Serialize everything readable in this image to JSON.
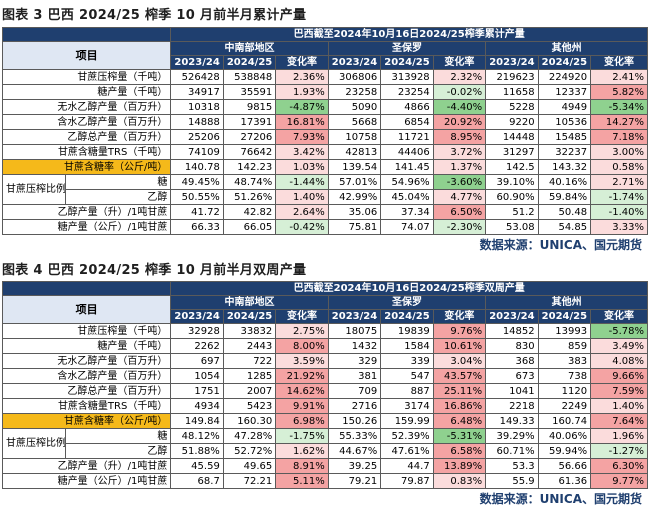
{
  "source_text": "数据来源：UNICA、国元期货",
  "table3": {
    "title": "图表 3  巴西 2024/25 榨季 10 月前半月累计产量",
    "banner": "巴西截至2024年10月16日2024/25榨季累计产量",
    "item_header": "项目",
    "regions": [
      "中南部地区",
      "圣保罗",
      "其他州"
    ],
    "sub_headers": [
      "2023/24",
      "2024/25",
      "变化率"
    ],
    "rows": [
      {
        "label": "甘蔗压榨量（千吨）",
        "cells": [
          [
            "526428",
            "538848",
            "2.36%"
          ],
          [
            "306806",
            "313928",
            "2.32%"
          ],
          [
            "219623",
            "224920",
            "2.41%"
          ]
        ]
      },
      {
        "label": "糖产量（千吨）",
        "cells": [
          [
            "34917",
            "35591",
            "1.93%"
          ],
          [
            "23258",
            "23254",
            "-0.02%"
          ],
          [
            "11658",
            "12337",
            "5.82%"
          ]
        ]
      },
      {
        "label": "无水乙醇产量（百万升）",
        "cells": [
          [
            "10318",
            "9815",
            "-4.87%"
          ],
          [
            "5090",
            "4866",
            "-4.40%"
          ],
          [
            "5228",
            "4949",
            "-5.34%"
          ]
        ]
      },
      {
        "label": "含水乙醇产量（百万升）",
        "cells": [
          [
            "14888",
            "17391",
            "16.81%"
          ],
          [
            "5668",
            "6854",
            "20.92%"
          ],
          [
            "9220",
            "10536",
            "14.27%"
          ]
        ]
      },
      {
        "label": "乙醇总产量（百万升）",
        "cells": [
          [
            "25206",
            "27206",
            "7.93%"
          ],
          [
            "10758",
            "11721",
            "8.95%"
          ],
          [
            "14448",
            "15485",
            "7.18%"
          ]
        ]
      },
      {
        "label": "甘蔗含糖量TRS（千吨）",
        "cells": [
          [
            "74109",
            "76642",
            "3.42%"
          ],
          [
            "42813",
            "44406",
            "3.72%"
          ],
          [
            "31297",
            "32237",
            "3.00%"
          ]
        ]
      },
      {
        "label": "甘蔗含糖率（公斤/吨）",
        "highlight": true,
        "cells": [
          [
            "140.78",
            "142.23",
            "1.03%"
          ],
          [
            "139.54",
            "141.45",
            "1.37%"
          ],
          [
            "142.5",
            "143.32",
            "0.58%"
          ]
        ]
      },
      {
        "group": "甘蔗压榨比例",
        "label": "糖",
        "cells": [
          [
            "49.45%",
            "48.74%",
            "-1.44%"
          ],
          [
            "57.01%",
            "54.96%",
            "-3.60%"
          ],
          [
            "39.10%",
            "40.16%",
            "2.71%"
          ]
        ]
      },
      {
        "label": "乙醇",
        "cells": [
          [
            "50.55%",
            "51.26%",
            "1.40%"
          ],
          [
            "42.99%",
            "45.04%",
            "4.77%"
          ],
          [
            "60.90%",
            "59.84%",
            "-1.74%"
          ]
        ]
      },
      {
        "label": "乙醇产量（升）/1吨甘蔗",
        "cells": [
          [
            "41.72",
            "42.82",
            "2.64%"
          ],
          [
            "35.06",
            "37.34",
            "6.50%"
          ],
          [
            "51.2",
            "50.48",
            "-1.40%"
          ]
        ]
      },
      {
        "label": "糖产量（公斤）/1吨甘蔗",
        "cells": [
          [
            "66.33",
            "66.05",
            "-0.42%"
          ],
          [
            "75.81",
            "74.07",
            "-2.30%"
          ],
          [
            "53.08",
            "54.85",
            "3.33%"
          ]
        ]
      }
    ]
  },
  "table4": {
    "title": "图表 4  巴西 2024/25 榨季 10 月前半月双周产量",
    "banner": "巴西截至2024年10月16日2024/25榨季双周产量",
    "item_header": "项目",
    "regions": [
      "中南部地区",
      "圣保罗",
      "其他州"
    ],
    "sub_headers": [
      "2023/24",
      "2024/25",
      "变化率"
    ],
    "rows": [
      {
        "label": "甘蔗压榨量（千吨）",
        "cells": [
          [
            "32928",
            "33832",
            "2.75%"
          ],
          [
            "18075",
            "19839",
            "9.76%"
          ],
          [
            "14852",
            "13993",
            "-5.78%"
          ]
        ]
      },
      {
        "label": "糖产量（千吨）",
        "cells": [
          [
            "2262",
            "2443",
            "8.00%"
          ],
          [
            "1432",
            "1584",
            "10.61%"
          ],
          [
            "830",
            "859",
            "3.49%"
          ]
        ]
      },
      {
        "label": "无水乙醇产量（百万升）",
        "cells": [
          [
            "697",
            "722",
            "3.59%"
          ],
          [
            "329",
            "339",
            "3.04%"
          ],
          [
            "368",
            "383",
            "4.08%"
          ]
        ]
      },
      {
        "label": "含水乙醇产量（百万升）",
        "cells": [
          [
            "1054",
            "1285",
            "21.92%"
          ],
          [
            "381",
            "547",
            "43.57%"
          ],
          [
            "673",
            "738",
            "9.66%"
          ]
        ]
      },
      {
        "label": "乙醇总产量（百万升）",
        "cells": [
          [
            "1751",
            "2007",
            "14.62%"
          ],
          [
            "709",
            "887",
            "25.11%"
          ],
          [
            "1041",
            "1120",
            "7.59%"
          ]
        ]
      },
      {
        "label": "甘蔗含糖量TRS（千吨）",
        "cells": [
          [
            "4934",
            "5423",
            "9.91%"
          ],
          [
            "2716",
            "3174",
            "16.86%"
          ],
          [
            "2218",
            "2249",
            "1.40%"
          ]
        ]
      },
      {
        "label": "甘蔗含糖率（公斤/吨）",
        "highlight": true,
        "cells": [
          [
            "149.84",
            "160.30",
            "6.98%"
          ],
          [
            "150.26",
            "159.99",
            "6.48%"
          ],
          [
            "149.33",
            "160.74",
            "7.64%"
          ]
        ]
      },
      {
        "group": "甘蔗压榨比例",
        "label": "糖",
        "cells": [
          [
            "48.12%",
            "47.28%",
            "-1.75%"
          ],
          [
            "55.33%",
            "52.39%",
            "-5.31%"
          ],
          [
            "39.29%",
            "40.06%",
            "1.96%"
          ]
        ]
      },
      {
        "label": "乙醇",
        "cells": [
          [
            "51.88%",
            "52.72%",
            "1.62%"
          ],
          [
            "44.67%",
            "47.61%",
            "6.58%"
          ],
          [
            "60.71%",
            "59.94%",
            "-1.27%"
          ]
        ]
      },
      {
        "label": "乙醇产量（升）/1吨甘蔗",
        "cells": [
          [
            "45.59",
            "49.65",
            "8.91%"
          ],
          [
            "39.25",
            "44.7",
            "13.89%"
          ],
          [
            "53.3",
            "56.66",
            "6.30%"
          ]
        ]
      },
      {
        "label": "糖产量（公斤）/1吨甘蔗",
        "cells": [
          [
            "68.7",
            "72.21",
            "5.11%"
          ],
          [
            "79.21",
            "79.87",
            "0.83%"
          ],
          [
            "55.9",
            "61.36",
            "9.77%"
          ]
        ]
      }
    ]
  }
}
